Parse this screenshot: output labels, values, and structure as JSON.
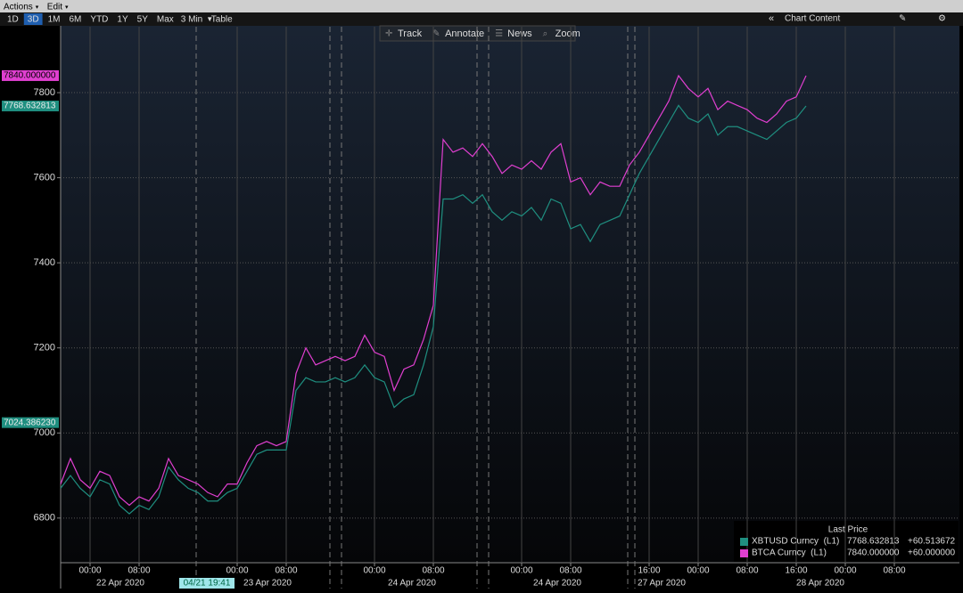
{
  "menu": [
    "Actions",
    "Edit"
  ],
  "ranges": [
    "1D",
    "3D",
    "1M",
    "6M",
    "YTD",
    "1Y",
    "5Y",
    "Max"
  ],
  "active_range": 1,
  "interval": "3 Min",
  "table": "Table",
  "tools": [
    "Track",
    "Annotate",
    "News",
    "Zoom"
  ],
  "chart_content": "Chart Content",
  "chart_data": {
    "type": "line",
    "categories": [
      null,
      null,
      null,
      "00:00",
      null,
      null,
      null,
      null,
      "08:00",
      null,
      null,
      null,
      null,
      null,
      null,
      null,
      null,
      null,
      "00:00",
      null,
      null,
      null,
      null,
      "08:00",
      null,
      null,
      null,
      null,
      null,
      null,
      null,
      null,
      "00:00",
      null,
      null,
      null,
      null,
      null,
      "08:00",
      null,
      null,
      null,
      null,
      null,
      null,
      null,
      null,
      "00:00",
      null,
      null,
      null,
      null,
      "08:00",
      null,
      null,
      null,
      null,
      null,
      null,
      null,
      "16:00",
      null,
      null,
      null,
      null,
      "00:00",
      null,
      null,
      null,
      null,
      "08:00",
      null,
      null,
      null,
      null,
      "16:00",
      null,
      null,
      null,
      null,
      "00:00",
      null,
      null,
      null,
      null,
      "08:00"
    ],
    "dates": [
      "22 Apr 2020",
      "23 Apr 2020",
      "24 Apr 2020",
      "24 Apr 2020",
      "27 Apr 2020",
      "28 Apr 2020"
    ],
    "cursor_label": "04/21 19:41",
    "ylim": [
      6695,
      7955
    ],
    "yticks": [
      6800,
      7000,
      7200,
      7400,
      7600,
      7800
    ],
    "grid": true,
    "legend_header": "Last Price",
    "series": [
      {
        "name": "XBTUSD Curncy  (L1)",
        "color": "#1f8f80",
        "last": 7768.632813,
        "change": {
          "value": 60.513672,
          "label": "+60.513672"
        },
        "values": [
          6870,
          6900,
          6870,
          6850,
          6890,
          6880,
          6830,
          6810,
          6830,
          6820,
          6850,
          6920,
          6890,
          6870,
          6860,
          6840,
          6840,
          6860,
          6870,
          6910,
          6950,
          6960,
          6960,
          6960,
          7100,
          7130,
          7120,
          7120,
          7130,
          7120,
          7130,
          7160,
          7130,
          7120,
          7060,
          7080,
          7090,
          7160,
          7250,
          7550,
          7550,
          7560,
          7540,
          7560,
          7520,
          7500,
          7520,
          7510,
          7530,
          7500,
          7550,
          7540,
          7480,
          7490,
          7450,
          7490,
          7500,
          7510,
          7560,
          7610,
          7650,
          7690,
          7730,
          7770,
          7740,
          7730,
          7750,
          7700,
          7720,
          7720,
          7710,
          7700,
          7690,
          7710,
          7730,
          7740,
          7768.632813,
          null,
          null,
          null,
          null,
          null,
          null,
          null,
          null,
          null
        ]
      },
      {
        "name": "BTCA Curncy  (L1)",
        "color": "#e03fd0",
        "last": {
          "value": 7840,
          "label": "7840.000000"
        },
        "change": {
          "value": 60,
          "label": "+60.000000"
        },
        "values": [
          6880,
          6940,
          6890,
          6870,
          6910,
          6900,
          6850,
          6830,
          6850,
          6840,
          6870,
          6940,
          6900,
          6890,
          6880,
          6860,
          6850,
          6880,
          6880,
          6930,
          6970,
          6980,
          6970,
          6980,
          7140,
          7200,
          7160,
          7170,
          7180,
          7170,
          7180,
          7230,
          7190,
          7180,
          7100,
          7150,
          7160,
          7220,
          7300,
          7690,
          7660,
          7670,
          7650,
          7680,
          7650,
          7610,
          7630,
          7620,
          7640,
          7620,
          7660,
          7680,
          7590,
          7600,
          7560,
          7590,
          7580,
          7580,
          7630,
          7660,
          7700,
          7740,
          7780,
          7840,
          7810,
          7790,
          7810,
          7760,
          7780,
          7770,
          7760,
          7740,
          7730,
          7750,
          7780,
          7790,
          7840,
          null,
          null,
          null,
          null,
          null,
          null,
          null,
          null,
          null
        ]
      }
    ],
    "price_tags": [
      {
        "value": 7840,
        "label": "7840.000000",
        "color": "#e03fd0"
      },
      {
        "value": 7768.632813,
        "label": "7768.632813",
        "color": "#1f8f80"
      },
      {
        "value": 7024.38623,
        "label": "7024.386230",
        "color": "#1f8f80"
      }
    ]
  }
}
